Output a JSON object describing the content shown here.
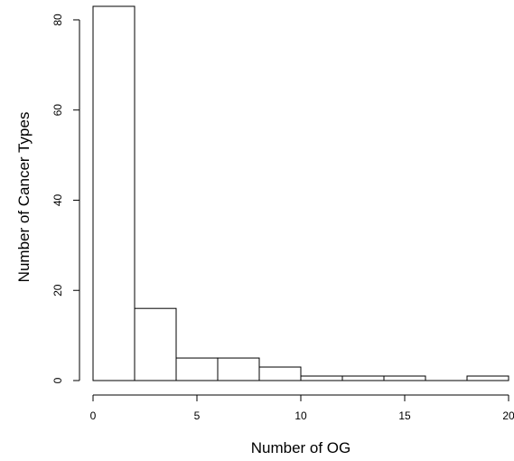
{
  "chart_data": {
    "type": "bar",
    "title": "",
    "xlabel": "Number of OG",
    "ylabel": "Number of Cancer Types",
    "bins": [
      {
        "from": 0,
        "to": 2,
        "count": 83
      },
      {
        "from": 2,
        "to": 4,
        "count": 16
      },
      {
        "from": 4,
        "to": 6,
        "count": 5
      },
      {
        "from": 6,
        "to": 8,
        "count": 5
      },
      {
        "from": 8,
        "to": 10,
        "count": 3
      },
      {
        "from": 10,
        "to": 12,
        "count": 1
      },
      {
        "from": 12,
        "to": 14,
        "count": 1
      },
      {
        "from": 14,
        "to": 16,
        "count": 1
      },
      {
        "from": 16,
        "to": 18,
        "count": 0
      },
      {
        "from": 18,
        "to": 20,
        "count": 1
      }
    ],
    "xlim": [
      0,
      20
    ],
    "ylim": [
      0,
      83
    ],
    "xticks": [
      "0",
      "5",
      "10",
      "15",
      "20"
    ],
    "yticks": [
      "0",
      "20",
      "40",
      "60",
      "80"
    ],
    "grid": false
  }
}
